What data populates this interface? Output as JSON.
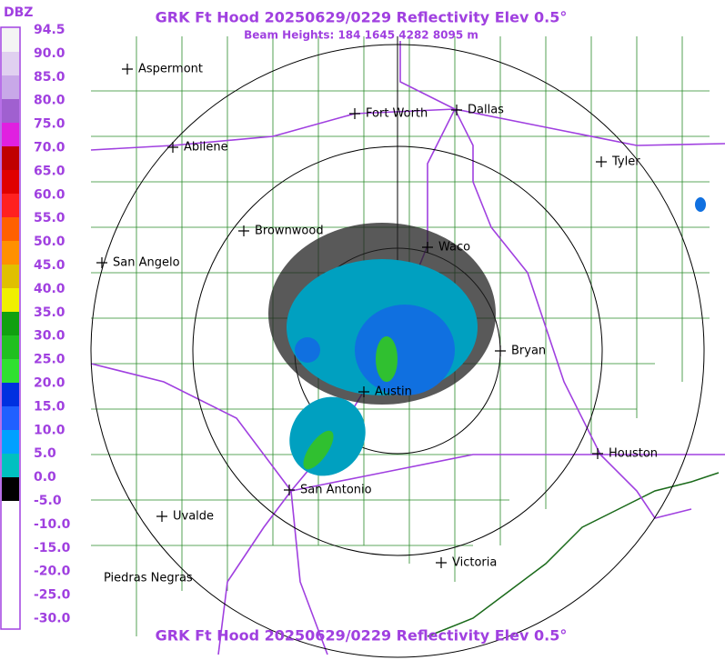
{
  "header": {
    "title": "GRK Ft Hood 20250629/0229 Reflectivity Elev 0.5°",
    "subtitle": "Beam Heights: 184 1645 4282 8095 m",
    "footer": "GRK Ft Hood 20250629/0229 Reflectivity Elev 0.5°"
  },
  "legend": {
    "unit": "DBZ",
    "labels": [
      "94.5",
      "90.0",
      "85.0",
      "80.0",
      "75.0",
      "70.0",
      "65.0",
      "60.0",
      "55.0",
      "50.0",
      "45.0",
      "40.0",
      "35.0",
      "30.0",
      "25.0",
      "20.0",
      "15.0",
      "10.0",
      "5.0",
      "0.0",
      "-5.0",
      "-10.0",
      "-15.0",
      "-20.0",
      "-25.0",
      "-30.0"
    ]
  },
  "cities": [
    "Aspermont",
    "Fort Worth",
    "Dallas",
    "Abilene",
    "Tyler",
    "Brownwood",
    "Waco",
    "San Angelo",
    "Bryan",
    "Austin",
    "Houston",
    "San Antonio",
    "Uvalde",
    "Victoria",
    "Piedras Negras"
  ]
}
